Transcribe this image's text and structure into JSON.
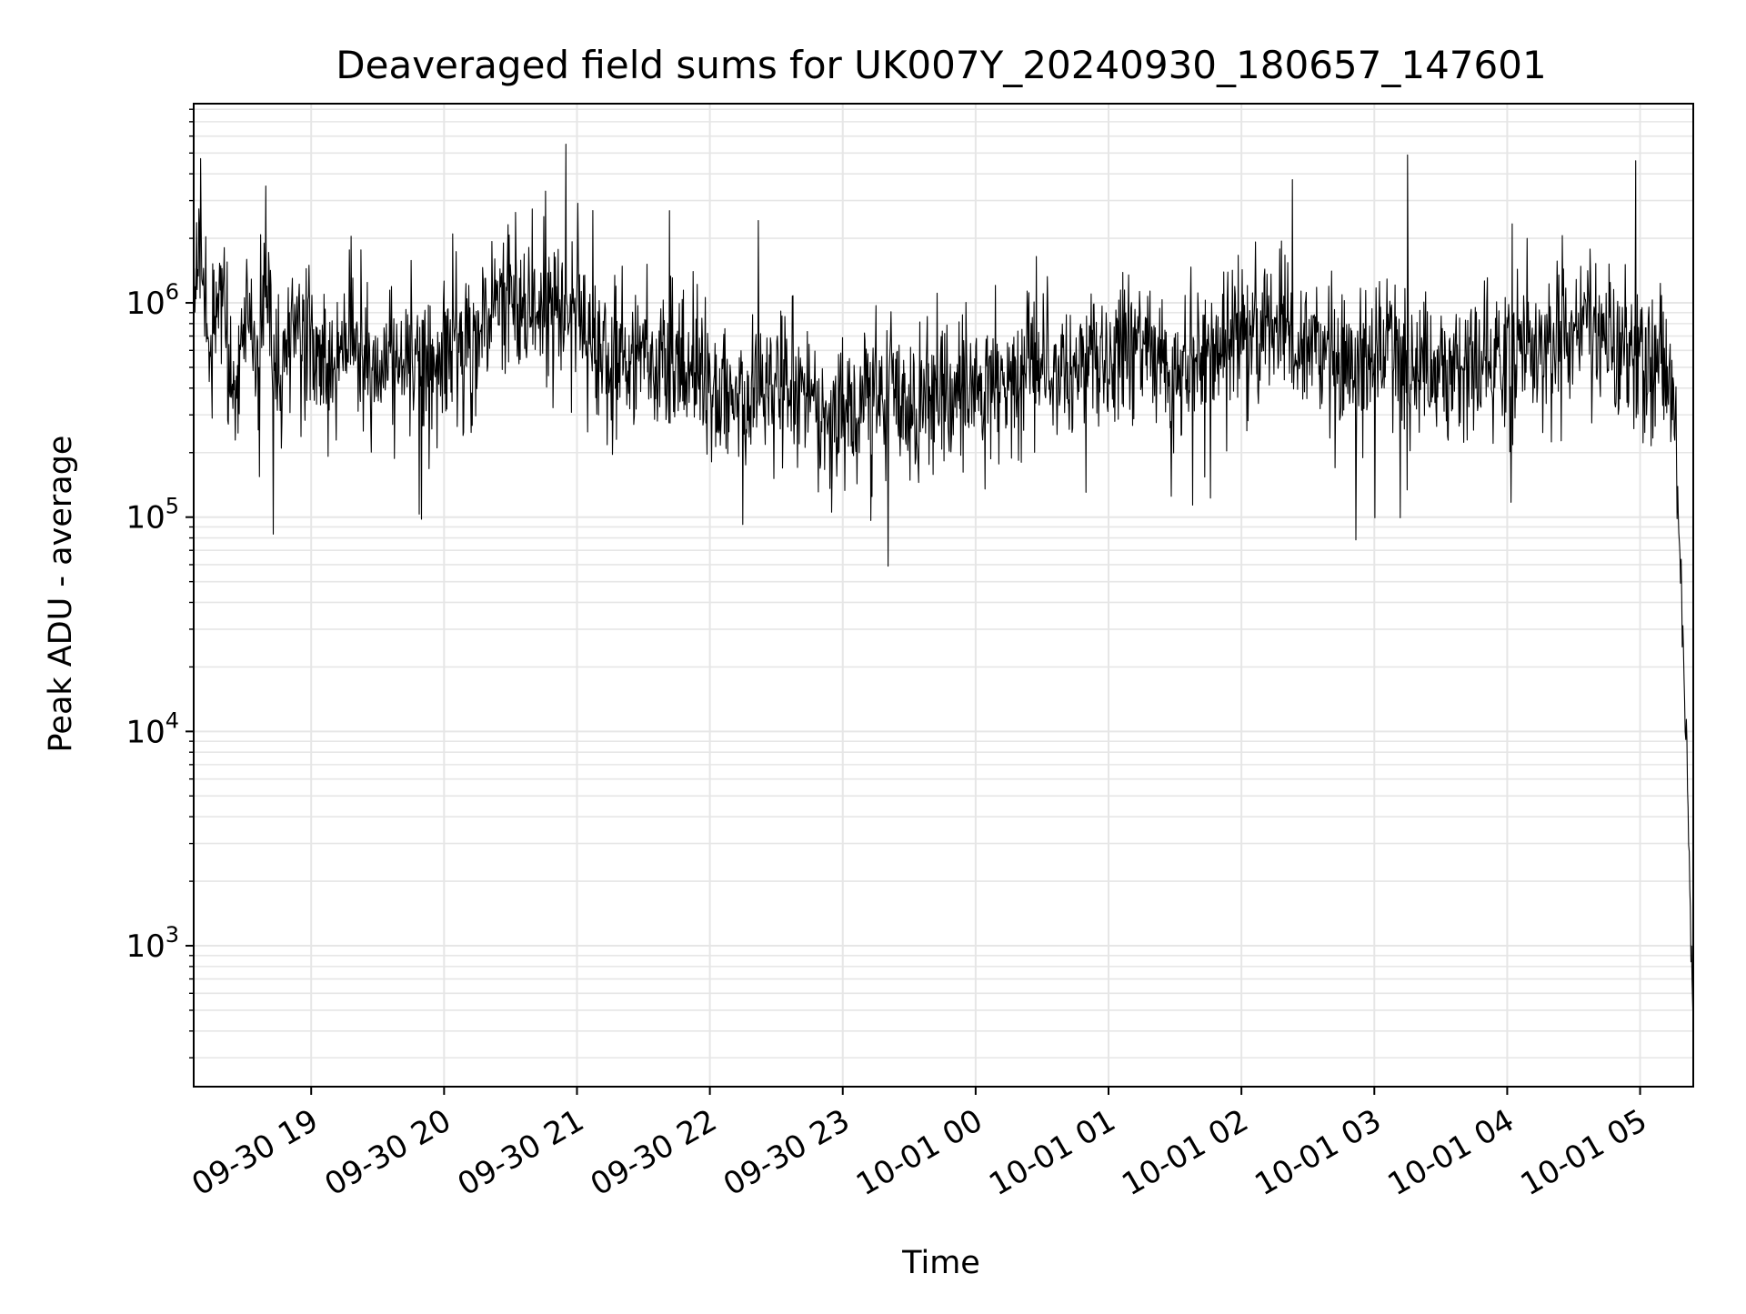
{
  "chart_data": {
    "type": "line",
    "title": "Deaveraged field sums for UK007Y_20240930_180657_147601",
    "xlabel": "Time",
    "ylabel": "Peak ADU - average",
    "x_axis_type": "datetime",
    "y_scale": "log",
    "xlim": [
      "2024-09-30 18:06:57",
      "2024-10-01 05:24:00"
    ],
    "ylim": [
      220,
      8500000
    ],
    "grid": true,
    "legend": "none",
    "line_color": "#000000",
    "grid_color": "#e6e6e6",
    "x_ticks": [
      {
        "value": "2024-09-30 19:00",
        "label": "09-30 19"
      },
      {
        "value": "2024-09-30 20:00",
        "label": "09-30 20"
      },
      {
        "value": "2024-09-30 21:00",
        "label": "09-30 21"
      },
      {
        "value": "2024-09-30 22:00",
        "label": "09-30 22"
      },
      {
        "value": "2024-09-30 23:00",
        "label": "09-30 23"
      },
      {
        "value": "2024-10-01 00:00",
        "label": "10-01 00"
      },
      {
        "value": "2024-10-01 01:00",
        "label": "10-01 01"
      },
      {
        "value": "2024-10-01 02:00",
        "label": "10-01 02"
      },
      {
        "value": "2024-10-01 03:00",
        "label": "10-01 03"
      },
      {
        "value": "2024-10-01 04:00",
        "label": "10-01 04"
      },
      {
        "value": "2024-10-01 05:00",
        "label": "10-01 05"
      }
    ],
    "y_ticks": [
      {
        "value": 1000,
        "base": "10",
        "exp": "3"
      },
      {
        "value": 10000,
        "base": "10",
        "exp": "4"
      },
      {
        "value": 100000,
        "base": "10",
        "exp": "5"
      },
      {
        "value": 1000000,
        "base": "10",
        "exp": "6"
      }
    ],
    "series": [
      {
        "x": [
          "2024-09-30 18:07",
          "2024-09-30 18:10",
          "2024-09-30 18:15",
          "2024-09-30 18:20",
          "2024-09-30 18:25",
          "2024-09-30 18:30",
          "2024-09-30 18:35",
          "2024-09-30 18:40",
          "2024-09-30 18:45",
          "2024-09-30 18:50",
          "2024-09-30 18:55",
          "2024-09-30 19:00",
          "2024-09-30 19:10",
          "2024-09-30 19:20",
          "2024-09-30 19:30",
          "2024-09-30 19:40",
          "2024-09-30 19:50",
          "2024-09-30 20:00",
          "2024-09-30 20:10",
          "2024-09-30 20:20",
          "2024-09-30 20:30",
          "2024-09-30 20:40",
          "2024-09-30 20:50",
          "2024-09-30 21:00",
          "2024-09-30 21:10",
          "2024-09-30 21:20",
          "2024-09-30 21:30",
          "2024-09-30 21:40",
          "2024-09-30 21:50",
          "2024-09-30 22:00",
          "2024-09-30 22:10",
          "2024-09-30 22:20",
          "2024-09-30 22:30",
          "2024-09-30 22:40",
          "2024-09-30 22:50",
          "2024-09-30 23:00",
          "2024-09-30 23:10",
          "2024-09-30 23:20",
          "2024-09-30 23:30",
          "2024-09-30 23:40",
          "2024-09-30 23:50",
          "2024-10-01 00:00",
          "2024-10-01 00:10",
          "2024-10-01 00:20",
          "2024-10-01 00:30",
          "2024-10-01 00:40",
          "2024-10-01 00:50",
          "2024-10-01 01:00",
          "2024-10-01 01:10",
          "2024-10-01 01:20",
          "2024-10-01 01:30",
          "2024-10-01 01:40",
          "2024-10-01 01:50",
          "2024-10-01 02:00",
          "2024-10-01 02:10",
          "2024-10-01 02:20",
          "2024-10-01 02:30",
          "2024-10-01 02:40",
          "2024-10-01 02:50",
          "2024-10-01 03:00",
          "2024-10-01 03:10",
          "2024-10-01 03:20",
          "2024-10-01 03:30",
          "2024-10-01 03:40",
          "2024-10-01 03:50",
          "2024-10-01 04:00",
          "2024-10-01 04:10",
          "2024-10-01 04:20",
          "2024-10-01 04:30",
          "2024-10-01 04:40",
          "2024-10-01 04:50",
          "2024-10-01 05:00",
          "2024-10-01 05:10",
          "2024-10-01 05:13",
          "2024-10-01 05:15",
          "2024-10-01 05:17",
          "2024-10-01 05:19",
          "2024-10-01 05:21",
          "2024-10-01 05:22",
          "2024-10-01 05:23",
          "2024-10-01 05:24"
        ],
        "values": [
          800000,
          2000000,
          500000,
          1200000,
          300000,
          900000,
          600000,
          1500000,
          400000,
          700000,
          1000000,
          650000,
          550000,
          800000,
          450000,
          600000,
          500000,
          550000,
          700000,
          900000,
          1200000,
          800000,
          1000000,
          900000,
          650000,
          500000,
          600000,
          450000,
          500000,
          420000,
          380000,
          350000,
          420000,
          360000,
          300000,
          320000,
          350000,
          380000,
          300000,
          400000,
          350000,
          380000,
          420000,
          450000,
          500000,
          480000,
          550000,
          500000,
          600000,
          550000,
          520000,
          600000,
          650000,
          600000,
          700000,
          650000,
          600000,
          550000,
          500000,
          600000,
          550000,
          500000,
          480000,
          520000,
          500000,
          550000,
          600000,
          650000,
          800000,
          700000,
          600000,
          550000,
          500000,
          450000,
          400000,
          150000,
          30000,
          10000,
          3000,
          900,
          550
        ]
      }
    ],
    "annotations": [
      {
        "x": "2024-09-30 20:55",
        "y": 5500000,
        "text": ""
      },
      {
        "x": "2024-10-01 03:15",
        "y": 4900000,
        "text": ""
      },
      {
        "x": "2024-10-01 04:58",
        "y": 4600000,
        "text": ""
      }
    ]
  }
}
